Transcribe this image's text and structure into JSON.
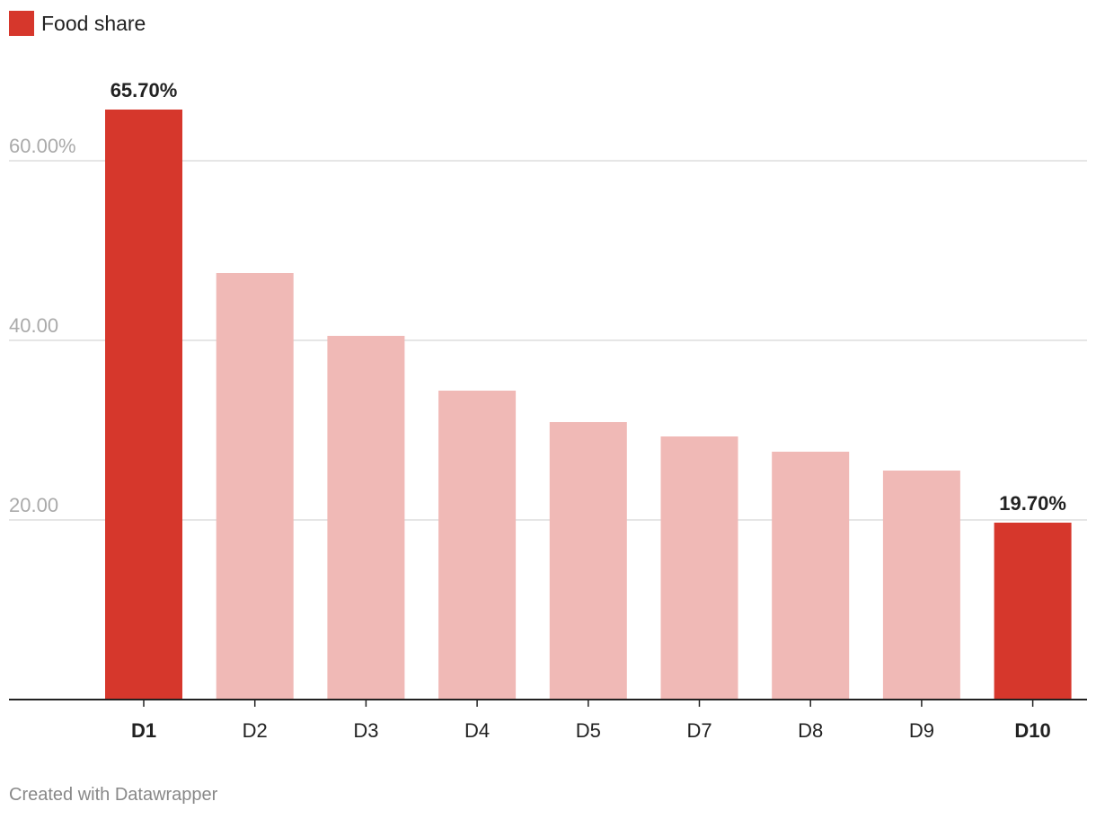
{
  "colors": {
    "highlight": "#d6372c",
    "muted": "#f0b9b6",
    "grid": "#dddddd",
    "axis": "#222222",
    "tick_text": "#aaaaaa",
    "label_text": "#222222"
  },
  "legend": [
    {
      "label": "Food share",
      "color": "#d6372c"
    }
  ],
  "footer": {
    "credit": "Created with Datawrapper"
  },
  "chart_data": {
    "type": "bar",
    "categories": [
      "D1",
      "D2",
      "D3",
      "D4",
      "D5",
      "D7",
      "D8",
      "D9",
      "D10"
    ],
    "series": [
      {
        "name": "Food share",
        "values": [
          65.7,
          47.5,
          40.5,
          34.4,
          30.9,
          29.3,
          27.6,
          25.5,
          19.7
        ]
      }
    ],
    "highlighted": [
      true,
      false,
      false,
      false,
      false,
      false,
      false,
      false,
      true
    ],
    "value_labels": [
      "65.70%",
      "",
      "",
      "",
      "",
      "",
      "",
      "",
      "19.70%"
    ],
    "y_ticks": [
      {
        "value": 60,
        "label": "60.00%"
      },
      {
        "value": 40,
        "label": "40.00"
      },
      {
        "value": 20,
        "label": "20.00"
      }
    ],
    "ylim": [
      0,
      70
    ],
    "grid": true,
    "legend_position": "top-left",
    "xlabel": "",
    "ylabel": "",
    "title": ""
  }
}
